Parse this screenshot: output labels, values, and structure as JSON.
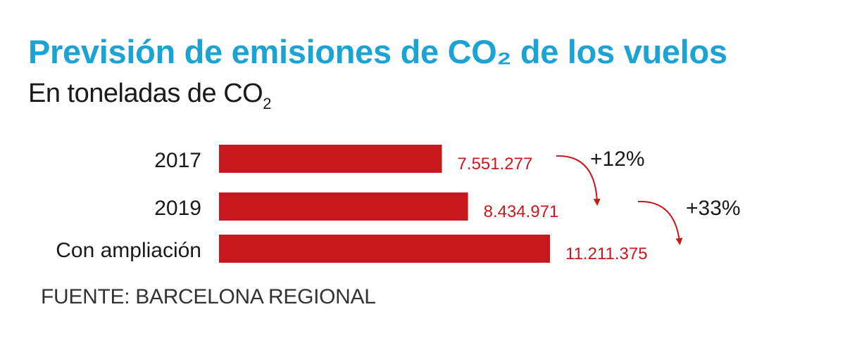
{
  "header": {
    "title": "Previsión de emisiones de CO₂ de los vuelos",
    "subtitle_main": "En toneladas de CO",
    "subtitle_sub": "2"
  },
  "source": "FUENTE: BARCELONA REGIONAL",
  "colors": {
    "title": "#1aa3d4",
    "bar": "#c8181e",
    "value_text": "#c8181e",
    "arrow": "#c8181e"
  },
  "chart_data": {
    "type": "bar",
    "orientation": "horizontal",
    "categories": [
      "2017",
      "2019",
      "Con ampliación"
    ],
    "values": [
      7551277,
      8434971,
      11211375
    ],
    "value_labels": [
      "7.551.277",
      "8.434.971",
      "11.211.375"
    ],
    "xlim": [
      0,
      11500000
    ],
    "grid": false,
    "annotations": [
      {
        "from": "2017",
        "to": "2019",
        "text": "+12%"
      },
      {
        "from": "2019",
        "to": "Con ampliación",
        "text": "+33%"
      }
    ]
  }
}
